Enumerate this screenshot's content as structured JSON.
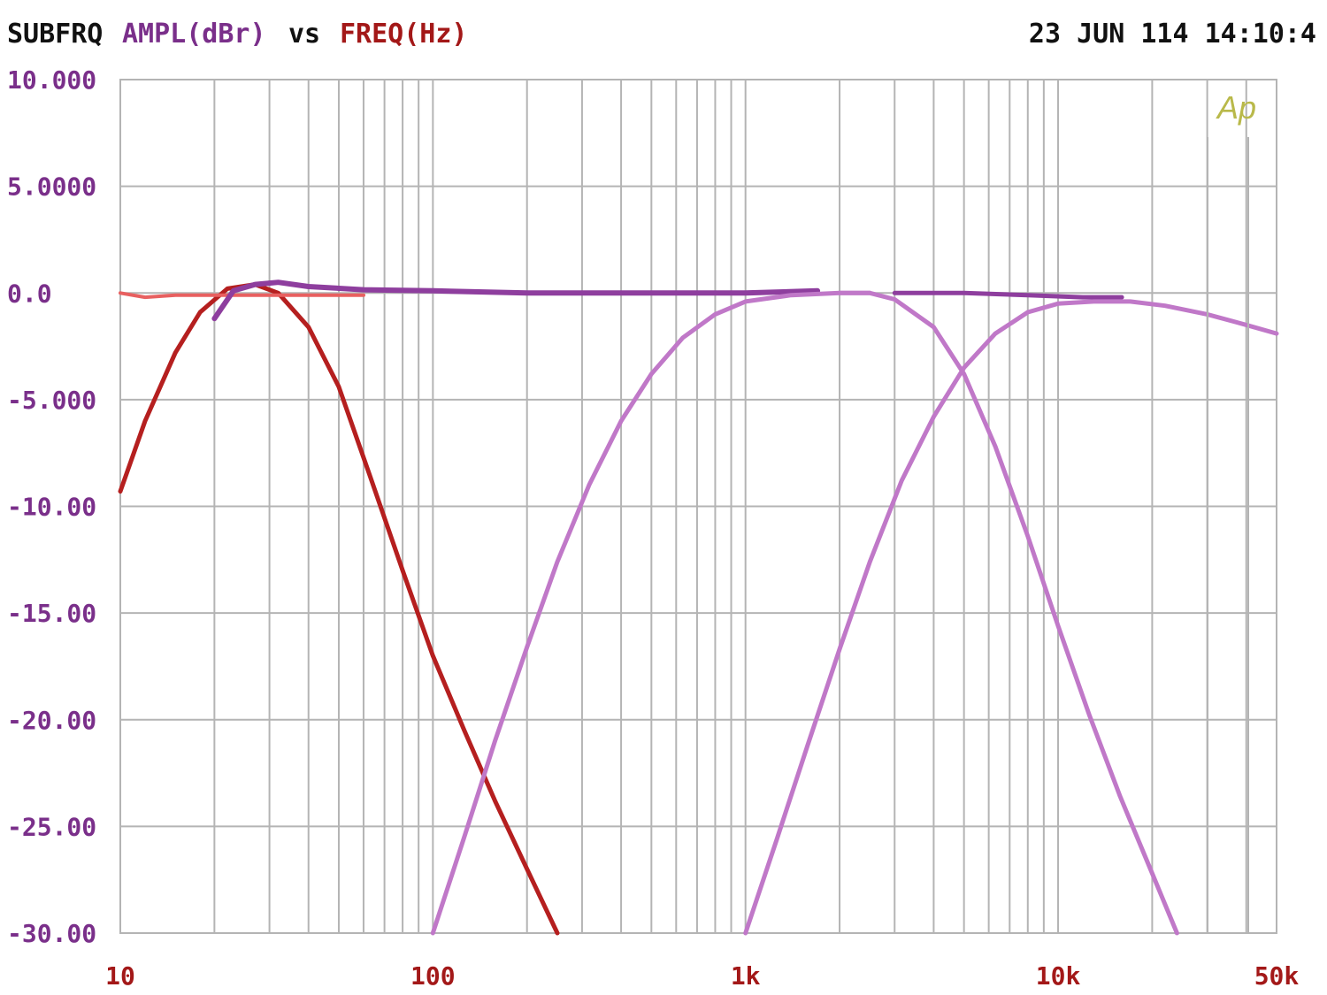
{
  "header": {
    "name": "SUBFRQ",
    "ylabel": "AMPL(dBr)",
    "vs": "vs",
    "xlabel": "FREQ(Hz)",
    "timestamp": "23 JUN 114 14:10:4",
    "logo": "Ap"
  },
  "colors": {
    "grid": "#b4b4b4",
    "ylabel": "#7a2f8a",
    "xlabel": "#a31818",
    "yticks": "#7a2f8a",
    "xticks": "#a31818",
    "logo": "#b9b94a"
  },
  "chart_data": {
    "type": "line",
    "xlabel": "FREQ(Hz)",
    "ylabel": "AMPL(dBr)",
    "x_scale": "log",
    "xlim": [
      10,
      50000
    ],
    "ylim": [
      -30,
      10
    ],
    "grid": true,
    "y_ticks": [
      {
        "value": 10,
        "label": "10.000"
      },
      {
        "value": 5,
        "label": "5.0000"
      },
      {
        "value": 0,
        "label": "0.0"
      },
      {
        "value": -5,
        "label": "-5.000"
      },
      {
        "value": -10,
        "label": "-10.00"
      },
      {
        "value": -15,
        "label": "-15.00"
      },
      {
        "value": -20,
        "label": "-20.00"
      },
      {
        "value": -25,
        "label": "-25.00"
      },
      {
        "value": -30,
        "label": "-30.00"
      }
    ],
    "x_ticks": [
      {
        "value": 10,
        "label": "10"
      },
      {
        "value": 100,
        "label": "100"
      },
      {
        "value": 1000,
        "label": "1k"
      },
      {
        "value": 10000,
        "label": "10k"
      },
      {
        "value": 50000,
        "label": "50k"
      }
    ],
    "series": [
      {
        "color": "#b51f1f",
        "width": 5,
        "points": [
          [
            10,
            -9.3
          ],
          [
            12,
            -6.0
          ],
          [
            15,
            -2.8
          ],
          [
            18,
            -0.9
          ],
          [
            22,
            0.2
          ],
          [
            27,
            0.4
          ],
          [
            32,
            0.0
          ],
          [
            40,
            -1.6
          ],
          [
            50,
            -4.4
          ],
          [
            63,
            -8.6
          ],
          [
            80,
            -13.0
          ],
          [
            100,
            -17.0
          ],
          [
            126,
            -20.5
          ],
          [
            158,
            -23.8
          ],
          [
            200,
            -27.0
          ],
          [
            250,
            -30.0
          ]
        ]
      },
      {
        "color": "#e86060",
        "width": 4,
        "points": [
          [
            10,
            0.0
          ],
          [
            12,
            -0.2
          ],
          [
            15,
            -0.1
          ],
          [
            20,
            -0.1
          ],
          [
            30,
            -0.1
          ],
          [
            45,
            -0.1
          ],
          [
            60,
            -0.1
          ]
        ]
      },
      {
        "color": "#8e3e9e",
        "width": 6,
        "points": [
          [
            20,
            -1.2
          ],
          [
            23,
            0.1
          ],
          [
            27,
            0.4
          ],
          [
            32,
            0.5
          ],
          [
            40,
            0.3
          ],
          [
            60,
            0.15
          ],
          [
            100,
            0.1
          ],
          [
            200,
            0.0
          ],
          [
            500,
            0.0
          ],
          [
            1000,
            0.0
          ],
          [
            1700,
            0.1
          ]
        ]
      },
      {
        "color": "#8e3e9e",
        "width": 5,
        "points": [
          [
            3000,
            0.0
          ],
          [
            5000,
            0.0
          ],
          [
            8000,
            -0.1
          ],
          [
            12000,
            -0.2
          ],
          [
            16000,
            -0.2
          ]
        ]
      },
      {
        "color": "#c078c8",
        "width": 5,
        "points": [
          [
            100,
            -30.0
          ],
          [
            126,
            -25.5
          ],
          [
            158,
            -21.0
          ],
          [
            200,
            -16.6
          ],
          [
            250,
            -12.6
          ],
          [
            316,
            -9.0
          ],
          [
            400,
            -6.0
          ],
          [
            500,
            -3.8
          ],
          [
            630,
            -2.1
          ],
          [
            800,
            -1.0
          ],
          [
            1000,
            -0.4
          ],
          [
            1400,
            -0.1
          ],
          [
            2000,
            0.0
          ],
          [
            2500,
            0.0
          ]
        ]
      },
      {
        "color": "#c078c8",
        "width": 5,
        "points": [
          [
            2000,
            0.0
          ],
          [
            2500,
            0.0
          ],
          [
            3000,
            -0.3
          ],
          [
            4000,
            -1.6
          ],
          [
            5000,
            -3.8
          ],
          [
            6300,
            -7.2
          ],
          [
            8000,
            -11.4
          ],
          [
            10000,
            -15.6
          ],
          [
            12600,
            -19.8
          ],
          [
            15800,
            -23.6
          ],
          [
            20000,
            -27.2
          ],
          [
            24000,
            -30.0
          ]
        ]
      },
      {
        "color": "#c078c8",
        "width": 5,
        "points": [
          [
            1000,
            -30.0
          ],
          [
            1260,
            -25.6
          ],
          [
            1580,
            -21.2
          ],
          [
            2000,
            -16.7
          ],
          [
            2500,
            -12.6
          ],
          [
            3160,
            -8.8
          ],
          [
            4000,
            -5.8
          ],
          [
            5000,
            -3.5
          ],
          [
            6300,
            -1.9
          ],
          [
            8000,
            -0.9
          ],
          [
            10000,
            -0.5
          ],
          [
            13000,
            -0.4
          ],
          [
            17000,
            -0.4
          ],
          [
            22000,
            -0.6
          ],
          [
            30000,
            -1.0
          ],
          [
            40000,
            -1.5
          ],
          [
            50000,
            -1.9
          ]
        ]
      }
    ]
  }
}
